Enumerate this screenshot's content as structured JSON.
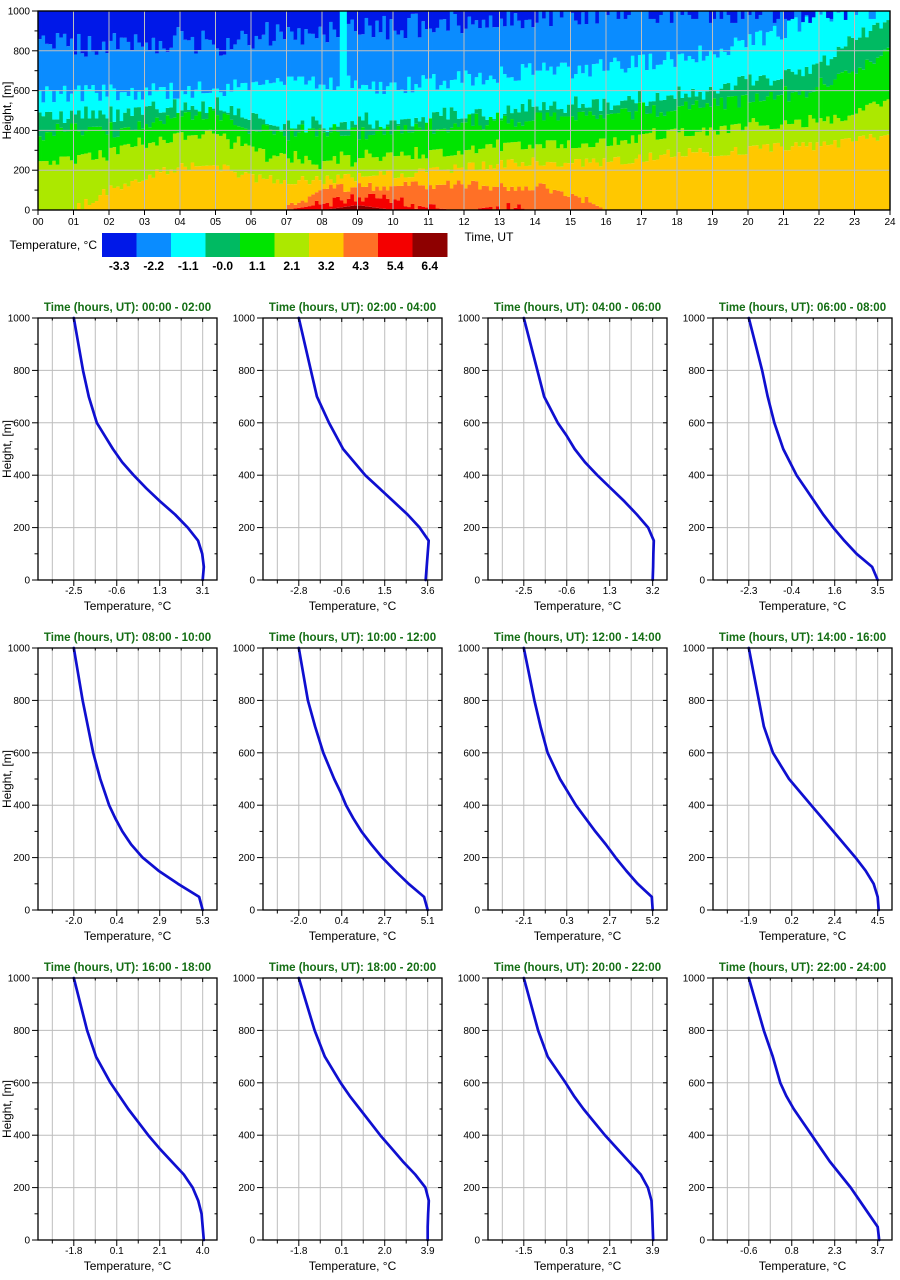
{
  "page": {
    "background": "#ffffff"
  },
  "styles": {
    "grid_color": "#bdbdbd",
    "axis_color": "#000000",
    "title_color": "#146e14",
    "curve_color": "#0f0fd0",
    "text_color": "#000000"
  },
  "chart_data": [
    {
      "id": "time-height-cross-section",
      "type": "heatmap",
      "xlabel": "Time, UT",
      "ylabel": "Height, [m]",
      "x_range": [
        0,
        24
      ],
      "y_range": [
        0,
        1000
      ],
      "x_tick_labels": [
        "00",
        "01",
        "02",
        "03",
        "04",
        "05",
        "06",
        "07",
        "08",
        "09",
        "10",
        "11",
        "12",
        "13",
        "14",
        "15",
        "16",
        "17",
        "18",
        "19",
        "20",
        "21",
        "22",
        "23",
        "24"
      ],
      "y_tick_values": [
        0,
        200,
        400,
        600,
        800,
        1000
      ],
      "y_tick_labels": [
        "0",
        "200",
        "400",
        "600",
        "800",
        "1000"
      ],
      "colors_hot_to_cold": [
        "#8e0000",
        "#f40000",
        "#ff7026",
        "#ffc800",
        "#ace800",
        "#00e400",
        "#00ba62",
        "#00ffff",
        "#0a8cff",
        "#0018e8"
      ],
      "isotherms": {
        "comment": "heights [m] of temperature thresholds at each hour 00..24, hot to cold",
        "hours": [
          0,
          1,
          2,
          3,
          4,
          5,
          6,
          7,
          8,
          9,
          10,
          11,
          12,
          13,
          14,
          15,
          16,
          17,
          18,
          19,
          20,
          21,
          22,
          23,
          24
        ],
        "levels": [
          {
            "temp": 6.4,
            "heights": [
              0,
              0,
              0,
              0,
              0,
              0,
              0,
              0,
              0,
              25,
              0,
              0,
              0,
              0,
              0,
              0,
              0,
              0,
              0,
              0,
              0,
              0,
              0,
              0,
              0
            ]
          },
          {
            "temp": 5.4,
            "heights": [
              0,
              0,
              0,
              0,
              0,
              0,
              0,
              0,
              30,
              65,
              55,
              10,
              0,
              20,
              0,
              0,
              0,
              0,
              0,
              0,
              0,
              0,
              0,
              0,
              0
            ]
          },
          {
            "temp": 4.3,
            "heights": [
              0,
              0,
              0,
              0,
              0,
              0,
              0,
              0,
              105,
              115,
              120,
              125,
              130,
              115,
              120,
              85,
              0,
              0,
              0,
              0,
              0,
              0,
              0,
              0,
              0
            ]
          },
          {
            "temp": 3.2,
            "heights": [
              0,
              0,
              100,
              170,
              215,
              225,
              160,
              150,
              150,
              165,
              180,
              190,
              215,
              230,
              245,
              235,
              240,
              260,
              290,
              290,
              300,
              320,
              320,
              345,
              380
            ]
          },
          {
            "temp": 2.1,
            "heights": [
              245,
              250,
              290,
              330,
              370,
              385,
              300,
              260,
              245,
              260,
              270,
              280,
              300,
              315,
              330,
              330,
              340,
              360,
              390,
              395,
              420,
              430,
              440,
              480,
              560
            ]
          },
          {
            "temp": 1.1,
            "heights": [
              390,
              395,
              400,
              430,
              470,
              480,
              420,
              390,
              390,
              395,
              400,
              420,
              440,
              450,
              470,
              470,
              480,
              500,
              520,
              540,
              560,
              580,
              620,
              700,
              800
            ]
          },
          {
            "temp": -0.0,
            "heights": [
              470,
              480,
              480,
              500,
              520,
              530,
              470,
              430,
              430,
              450,
              450,
              470,
              480,
              500,
              520,
              530,
              540,
              560,
              580,
              600,
              640,
              680,
              740,
              850,
              960
            ]
          },
          {
            "temp": -1.1,
            "heights": [
              580,
              585,
              590,
              595,
              600,
              610,
              620,
              650,
              650,
              630,
              620,
              640,
              660,
              680,
              700,
              700,
              720,
              740,
              760,
              800,
              840,
              900,
              980,
              1000,
              1000
            ]
          },
          {
            "temp": -2.2,
            "heights": [
              840,
              820,
              850,
              840,
              860,
              830,
              870,
              900,
              880,
              900,
              920,
              930,
              950,
              960,
              980,
              990,
              1000,
              1000,
              1000,
              1000,
              1000,
              1000,
              1000,
              1000,
              1000
            ]
          }
        ]
      },
      "legend": {
        "label": "Temperature, °C",
        "boundary_values": [
          "-3.3",
          "-2.2",
          "-1.1",
          "-0.0",
          "1.1",
          "2.1",
          "3.2",
          "4.3",
          "5.4",
          "6.4"
        ],
        "colors_cold_to_hot": [
          "#0018e8",
          "#0a8cff",
          "#00ffff",
          "#00ba62",
          "#00e400",
          "#ace800",
          "#ffc800",
          "#ff7026",
          "#f40000",
          "#8e0000"
        ]
      }
    },
    {
      "id": "temperature-profiles",
      "type": "line",
      "xlabel": "Temperature, °C",
      "ylabel": "Height, [m]",
      "y_tick_values": [
        0,
        200,
        400,
        600,
        800,
        1000
      ],
      "y_tick_labels": [
        "0",
        "200",
        "400",
        "600",
        "800",
        "1000"
      ],
      "heights": [
        1000,
        900,
        800,
        700,
        600,
        550,
        500,
        450,
        400,
        350,
        300,
        250,
        200,
        150,
        100,
        50,
        0
      ],
      "profiles": [
        {
          "title": "Time (hours, UT): 00:00 - 02:00",
          "time_range": "00:00 - 02:00",
          "x_tick_labels": [
            "-2.5",
            "-0.6",
            "1.3",
            "3.1"
          ],
          "temps": [
            -2.5,
            -2.3,
            -2.1,
            -1.85,
            -1.5,
            -1.15,
            -0.8,
            -0.4,
            0.1,
            0.65,
            1.25,
            1.9,
            2.45,
            2.9,
            3.08,
            3.15,
            3.1
          ]
        },
        {
          "title": "Time (hours, UT): 02:00 - 04:00",
          "time_range": "02:00 - 04:00",
          "x_tick_labels": [
            "-2.8",
            "-0.6",
            "1.5",
            "3.6"
          ],
          "temps": [
            -2.8,
            -2.5,
            -2.2,
            -1.9,
            -1.3,
            -0.95,
            -0.6,
            -0.05,
            0.5,
            1.2,
            1.9,
            2.6,
            3.2,
            3.65,
            3.6,
            3.55,
            3.5
          ]
        },
        {
          "title": "Time (hours, UT): 04:00 - 06:00",
          "time_range": "04:00 - 06:00",
          "x_tick_labels": [
            "-2.5",
            "-0.6",
            "1.3",
            "3.2"
          ],
          "temps": [
            -2.5,
            -2.2,
            -1.9,
            -1.6,
            -1.0,
            -0.6,
            -0.25,
            0.2,
            0.75,
            1.35,
            1.95,
            2.5,
            3.0,
            3.25,
            3.23,
            3.22,
            3.2
          ]
        },
        {
          "title": "Time (hours, UT): 06:00 - 08:00",
          "time_range": "06:00 - 08:00",
          "x_tick_labels": [
            "-2.3",
            "-0.4",
            "1.6",
            "3.5"
          ],
          "temps": [
            -2.3,
            -2.0,
            -1.7,
            -1.45,
            -1.15,
            -0.95,
            -0.75,
            -0.45,
            -0.15,
            0.25,
            0.65,
            1.05,
            1.5,
            2.0,
            2.55,
            3.25,
            3.5
          ]
        },
        {
          "title": "Time (hours, UT): 08:00 - 10:00",
          "time_range": "08:00 - 10:00",
          "x_tick_labels": [
            "-2.0",
            "0.4",
            "2.9",
            "5.3"
          ],
          "temps": [
            -2.0,
            -1.75,
            -1.5,
            -1.2,
            -0.9,
            -0.7,
            -0.5,
            -0.25,
            0.0,
            0.35,
            0.75,
            1.25,
            1.9,
            2.8,
            3.9,
            5.1,
            5.3
          ]
        },
        {
          "title": "Time (hours, UT): 10:00 - 12:00",
          "time_range": "10:00 - 12:00",
          "x_tick_labels": [
            "-2.0",
            "0.4",
            "2.7",
            "5.1"
          ],
          "temps": [
            -2.0,
            -1.75,
            -1.5,
            -1.1,
            -0.65,
            -0.35,
            -0.05,
            0.3,
            0.6,
            1.0,
            1.45,
            2.0,
            2.6,
            3.3,
            4.05,
            4.9,
            5.1
          ]
        },
        {
          "title": "Time (hours, UT): 12:00 - 14:00",
          "time_range": "12:00 - 14:00",
          "x_tick_labels": [
            "-2.1",
            "0.3",
            "2.7",
            "5.2"
          ],
          "temps": [
            -2.1,
            -1.8,
            -1.5,
            -1.15,
            -0.75,
            -0.4,
            -0.05,
            0.4,
            0.85,
            1.4,
            1.95,
            2.55,
            3.1,
            3.7,
            4.35,
            5.15,
            5.2
          ]
        },
        {
          "title": "Time (hours, UT): 14:00 - 16:00",
          "time_range": "14:00 - 16:00",
          "x_tick_labels": [
            "-1.9",
            "0.2",
            "2.4",
            "4.5"
          ],
          "temps": [
            -1.9,
            -1.65,
            -1.4,
            -1.15,
            -0.7,
            -0.3,
            0.1,
            0.65,
            1.2,
            1.75,
            2.3,
            2.85,
            3.4,
            3.9,
            4.3,
            4.5,
            4.55
          ]
        },
        {
          "title": "Time (hours, UT): 16:00 - 18:00",
          "time_range": "16:00 - 18:00",
          "x_tick_labels": [
            "-1.8",
            "0.1",
            "2.1",
            "4.0"
          ],
          "temps": [
            -1.8,
            -1.5,
            -1.2,
            -0.8,
            -0.15,
            0.25,
            0.65,
            1.1,
            1.55,
            2.05,
            2.6,
            3.15,
            3.55,
            3.8,
            3.95,
            4.0,
            4.05
          ]
        },
        {
          "title": "Time (hours, UT): 18:00 - 20:00",
          "time_range": "18:00 - 20:00",
          "x_tick_labels": [
            "-1.8",
            "0.1",
            "2.0",
            "3.9"
          ],
          "temps": [
            -1.8,
            -1.45,
            -1.1,
            -0.65,
            0.05,
            0.45,
            0.9,
            1.35,
            1.8,
            2.3,
            2.8,
            3.35,
            3.8,
            3.95,
            3.92,
            3.9,
            3.9
          ]
        },
        {
          "title": "Time (hours, UT): 20:00 - 22:00",
          "time_range": "20:00 - 22:00",
          "x_tick_labels": [
            "-1.5",
            "0.3",
            "2.1",
            "3.9"
          ],
          "temps": [
            -1.5,
            -1.2,
            -0.9,
            -0.5,
            0.25,
            0.6,
            1.0,
            1.45,
            1.9,
            2.4,
            2.9,
            3.4,
            3.7,
            3.85,
            3.88,
            3.9,
            3.92
          ]
        },
        {
          "title": "Time (hours, UT): 22:00 - 24:00",
          "time_range": "22:00 - 24:00",
          "x_tick_labels": [
            "-0.6",
            "0.8",
            "2.3",
            "3.7"
          ],
          "temps": [
            -0.6,
            -0.35,
            -0.1,
            0.2,
            0.45,
            0.65,
            0.9,
            1.2,
            1.5,
            1.8,
            2.1,
            2.45,
            2.8,
            3.1,
            3.4,
            3.7,
            3.75
          ]
        }
      ]
    }
  ]
}
